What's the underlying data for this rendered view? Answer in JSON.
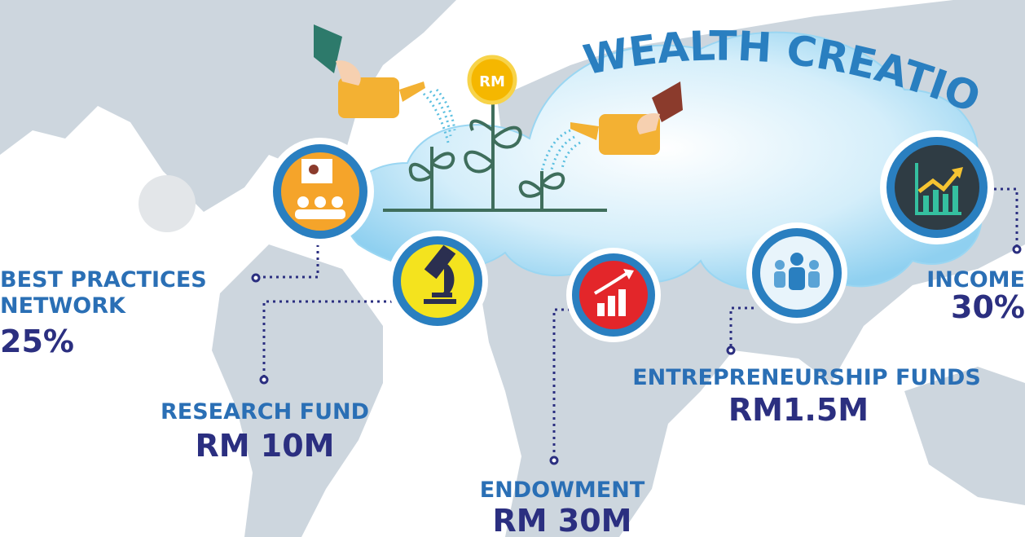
{
  "title": "WEALTH CREATION",
  "coin_label": "RM",
  "items": [
    {
      "label_lines": [
        "BEST PRACTICES",
        "NETWORK"
      ],
      "value": "25%"
    },
    {
      "label_lines": [
        "RESEARCH FUND"
      ],
      "value": "RM 10M"
    },
    {
      "label_lines": [
        "ENDOWMENT"
      ],
      "value": "RM 30M"
    },
    {
      "label_lines": [
        "ENTREPRENEURSHIP FUNDS"
      ],
      "value": "RM1.5M"
    },
    {
      "label_lines": [
        "INCOME"
      ],
      "value": "30%"
    }
  ]
}
